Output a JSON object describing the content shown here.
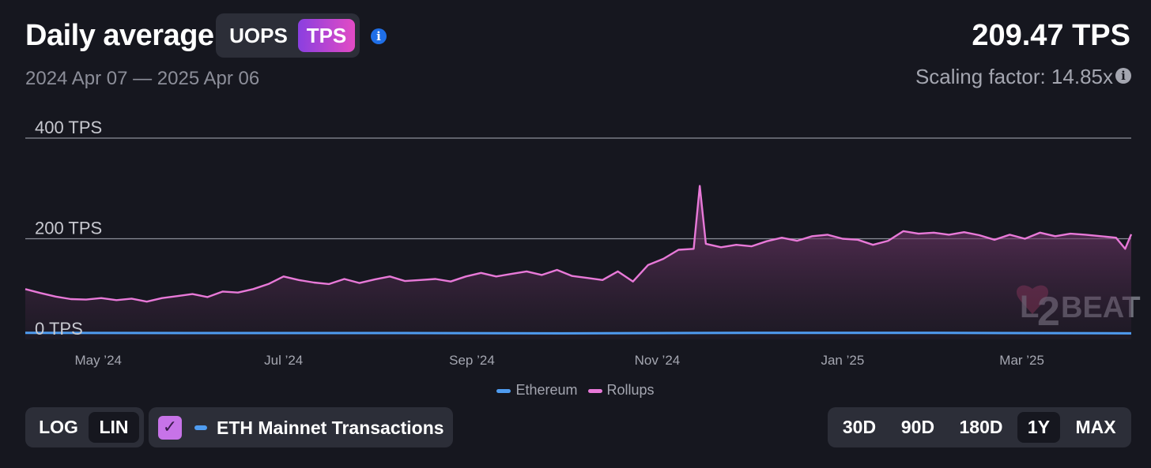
{
  "header": {
    "title": "Daily average",
    "metric_options": [
      "UOPS",
      "TPS"
    ],
    "metric_selected": "TPS",
    "date_range": "2024 Apr 07 — 2025 Apr 06",
    "current_value": "209.47 TPS",
    "scaling_factor": "Scaling factor: 14.85x"
  },
  "controls": {
    "scale_options": [
      "LOG",
      "LIN"
    ],
    "scale_selected": "LIN",
    "eth_toggle_label": "ETH Mainnet Transactions",
    "eth_toggle_checked": true,
    "range_options": [
      "30D",
      "90D",
      "180D",
      "1Y",
      "MAX"
    ],
    "range_selected": "1Y"
  },
  "colors": {
    "background": "#16171f",
    "rollups": "#e879d8",
    "ethereum": "#4f9cf0",
    "accent_gradient_start": "#8a3fe0",
    "accent_gradient_end": "#e34bc4"
  },
  "watermark": "L2BEAT",
  "chart_data": {
    "type": "area",
    "y_tick_labels": [
      "400 TPS",
      "200 TPS",
      "0 TPS"
    ],
    "y_ticks": [
      400,
      200,
      0
    ],
    "ylim": [
      0,
      400
    ],
    "xlim": [
      "2024-04-07",
      "2025-04-06"
    ],
    "x_tick_labels": [
      "May ’24",
      "Jul ’24",
      "Sep ’24",
      "Nov ’24",
      "Jan ’25",
      "Mar ’25"
    ],
    "x_ticks": [
      "2024-05-01",
      "2024-07-01",
      "2024-09-01",
      "2024-11-01",
      "2025-01-01",
      "2025-03-01"
    ],
    "grid": true,
    "legend_position": "bottom-center",
    "series": [
      {
        "name": "Ethereum",
        "color": "#4f9cf0",
        "points": [
          [
            "2024-04-07",
            13
          ],
          [
            "2024-06-01",
            12.5
          ],
          [
            "2024-08-01",
            12.5
          ],
          [
            "2024-10-01",
            12
          ],
          [
            "2024-12-01",
            13
          ],
          [
            "2025-02-01",
            13
          ],
          [
            "2025-04-06",
            12
          ]
        ]
      },
      {
        "name": "Rollups",
        "color": "#e879d8",
        "points": [
          [
            "2024-04-07",
            100
          ],
          [
            "2024-04-12",
            92
          ],
          [
            "2024-04-17",
            85
          ],
          [
            "2024-04-22",
            80
          ],
          [
            "2024-04-27",
            79
          ],
          [
            "2024-05-02",
            82
          ],
          [
            "2024-05-07",
            78
          ],
          [
            "2024-05-12",
            81
          ],
          [
            "2024-05-17",
            75
          ],
          [
            "2024-05-22",
            82
          ],
          [
            "2024-05-27",
            86
          ],
          [
            "2024-06-01",
            90
          ],
          [
            "2024-06-06",
            84
          ],
          [
            "2024-06-11",
            95
          ],
          [
            "2024-06-16",
            93
          ],
          [
            "2024-06-21",
            100
          ],
          [
            "2024-06-26",
            110
          ],
          [
            "2024-07-01",
            125
          ],
          [
            "2024-07-06",
            118
          ],
          [
            "2024-07-11",
            113
          ],
          [
            "2024-07-16",
            110
          ],
          [
            "2024-07-21",
            120
          ],
          [
            "2024-07-26",
            112
          ],
          [
            "2024-07-31",
            119
          ],
          [
            "2024-08-05",
            125
          ],
          [
            "2024-08-10",
            116
          ],
          [
            "2024-08-15",
            118
          ],
          [
            "2024-08-20",
            120
          ],
          [
            "2024-08-25",
            115
          ],
          [
            "2024-08-30",
            125
          ],
          [
            "2024-09-04",
            132
          ],
          [
            "2024-09-09",
            125
          ],
          [
            "2024-09-14",
            130
          ],
          [
            "2024-09-19",
            135
          ],
          [
            "2024-09-24",
            128
          ],
          [
            "2024-09-29",
            138
          ],
          [
            "2024-10-04",
            126
          ],
          [
            "2024-10-09",
            122
          ],
          [
            "2024-10-14",
            118
          ],
          [
            "2024-10-19",
            135
          ],
          [
            "2024-10-24",
            115
          ],
          [
            "2024-10-29",
            148
          ],
          [
            "2024-11-03",
            160
          ],
          [
            "2024-11-08",
            178
          ],
          [
            "2024-11-13",
            180
          ],
          [
            "2024-11-15",
            305
          ],
          [
            "2024-11-17",
            190
          ],
          [
            "2024-11-22",
            183
          ],
          [
            "2024-11-27",
            188
          ],
          [
            "2024-12-02",
            185
          ],
          [
            "2024-12-07",
            195
          ],
          [
            "2024-12-12",
            202
          ],
          [
            "2024-12-17",
            196
          ],
          [
            "2024-12-22",
            205
          ],
          [
            "2024-12-27",
            208
          ],
          [
            "2025-01-01",
            200
          ],
          [
            "2025-01-06",
            198
          ],
          [
            "2025-01-11",
            188
          ],
          [
            "2025-01-16",
            196
          ],
          [
            "2025-01-21",
            215
          ],
          [
            "2025-01-26",
            210
          ],
          [
            "2025-01-31",
            212
          ],
          [
            "2025-02-05",
            208
          ],
          [
            "2025-02-10",
            213
          ],
          [
            "2025-02-15",
            207
          ],
          [
            "2025-02-20",
            198
          ],
          [
            "2025-02-25",
            208
          ],
          [
            "2025-03-02",
            200
          ],
          [
            "2025-03-07",
            212
          ],
          [
            "2025-03-12",
            205
          ],
          [
            "2025-03-17",
            210
          ],
          [
            "2025-03-22",
            208
          ],
          [
            "2025-03-27",
            205
          ],
          [
            "2025-04-01",
            202
          ],
          [
            "2025-04-04",
            180
          ],
          [
            "2025-04-06",
            209
          ]
        ]
      }
    ]
  }
}
